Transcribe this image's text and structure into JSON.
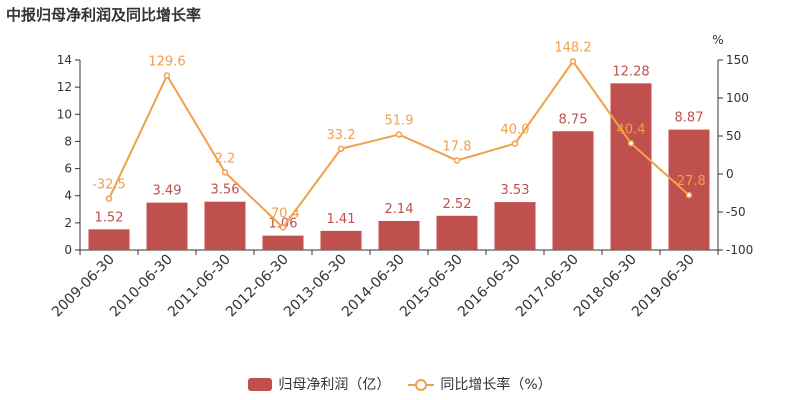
{
  "chart_data": {
    "type": "bar+line",
    "title": "中报归母净利润及同比增长率",
    "categories": [
      "2009-06-30",
      "2010-06-30",
      "2011-06-30",
      "2012-06-30",
      "2013-06-30",
      "2014-06-30",
      "2015-06-30",
      "2016-06-30",
      "2017-06-30",
      "2018-06-30",
      "2019-06-30"
    ],
    "series": [
      {
        "name": "归母净利润（亿）",
        "type": "bar",
        "axis": "left",
        "color": "#c0504d",
        "values": [
          1.52,
          3.49,
          3.56,
          1.06,
          1.41,
          2.14,
          2.52,
          3.53,
          8.75,
          12.28,
          8.87
        ]
      },
      {
        "name": "同比增长率（%）",
        "type": "line",
        "axis": "right",
        "color": "#f0a04b",
        "values": [
          -32.5,
          129.6,
          2.2,
          -70.4,
          33.2,
          51.9,
          17.8,
          40.0,
          148.2,
          40.4,
          -27.8
        ]
      }
    ],
    "left_axis": {
      "min": 0,
      "max": 14,
      "ticks": [
        0,
        2,
        4,
        6,
        8,
        10,
        12,
        14
      ]
    },
    "right_axis": {
      "min": -100,
      "max": 150,
      "ticks": [
        -100,
        -50,
        0,
        50,
        100,
        150
      ],
      "unit_label": "%"
    },
    "legend_position": "bottom-center",
    "grid": false
  }
}
